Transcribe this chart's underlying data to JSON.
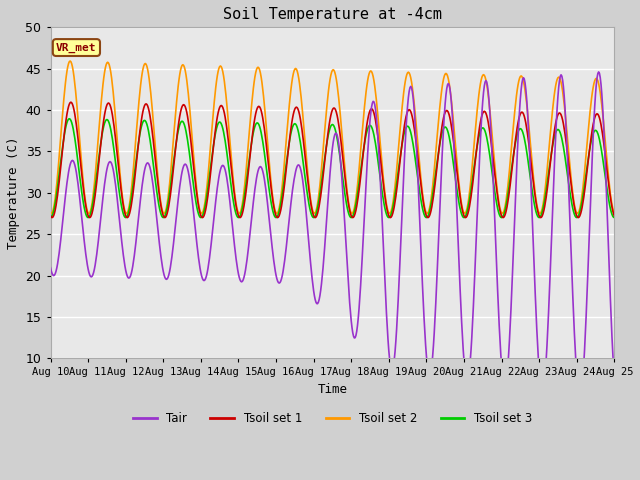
{
  "title": "Soil Temperature at -4cm",
  "xlabel": "Time",
  "ylabel": "Temperature (C)",
  "ylim": [
    10,
    50
  ],
  "xlim": [
    0,
    360
  ],
  "x_tick_labels": [
    "Aug 10",
    "Aug 11",
    "Aug 12",
    "Aug 13",
    "Aug 14",
    "Aug 15",
    "Aug 16",
    "Aug 17",
    "Aug 18",
    "Aug 19",
    "Aug 20",
    "Aug 21",
    "Aug 22",
    "Aug 23",
    "Aug 24",
    "Aug 25"
  ],
  "x_tick_positions": [
    0,
    24,
    48,
    72,
    96,
    120,
    144,
    168,
    192,
    216,
    240,
    264,
    288,
    312,
    336,
    360
  ],
  "y_ticks": [
    10,
    15,
    20,
    25,
    30,
    35,
    40,
    45,
    50
  ],
  "colors": {
    "Tair": "#9933cc",
    "Tsoil1": "#cc0000",
    "Tsoil2": "#ff9900",
    "Tsoil3": "#00cc00"
  },
  "legend_label": "VR_met",
  "bg_color": "#e8e8e8",
  "linewidth": 1.2,
  "n_points": 721
}
